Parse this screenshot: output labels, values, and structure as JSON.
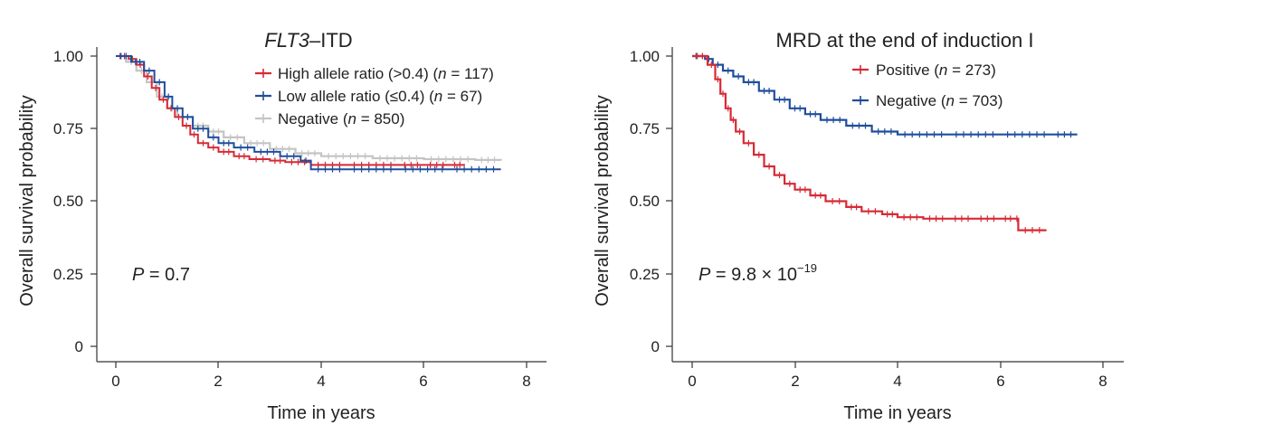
{
  "colors": {
    "red": "#d62a35",
    "blue": "#1f4e9c",
    "gray": "#c4c4c4"
  },
  "chart_data": [
    {
      "type": "line",
      "title_italic": "FLT3",
      "title_rest": "–ITD",
      "xlabel": "Time in years",
      "ylabel": "Overall survival probability",
      "xlim": [
        0,
        8
      ],
      "ylim": [
        0,
        1
      ],
      "xticks": [
        "0",
        "2",
        "4",
        "6",
        "8"
      ],
      "yticks": [
        "0",
        "0.25",
        "0.50",
        "0.75",
        "1.00"
      ],
      "pvalue": {
        "label": "P",
        "text": " = 0.7"
      },
      "series": [
        {
          "name": "High allele ratio (>0.4)",
          "n_text": " = 117)",
          "color": "red",
          "x": [
            0,
            0.25,
            0.4,
            0.55,
            0.7,
            0.85,
            1.0,
            1.15,
            1.3,
            1.45,
            1.6,
            1.8,
            2.0,
            2.3,
            2.6,
            3.0,
            3.3,
            3.8,
            4.5,
            5.5,
            6.0,
            6.5,
            6.8
          ],
          "y": [
            1.0,
            0.99,
            0.97,
            0.93,
            0.89,
            0.85,
            0.82,
            0.79,
            0.76,
            0.73,
            0.7,
            0.685,
            0.67,
            0.655,
            0.645,
            0.64,
            0.635,
            0.625,
            0.625,
            0.625,
            0.625,
            0.625,
            0.625
          ]
        },
        {
          "name": "Low allele ratio (≤0.4)",
          "n_text": " = 67)",
          "color": "blue",
          "x": [
            0,
            0.3,
            0.55,
            0.75,
            0.95,
            1.1,
            1.3,
            1.5,
            1.8,
            2.0,
            2.3,
            2.7,
            3.2,
            3.6,
            3.8,
            4.5,
            5.5,
            6.5,
            7.5
          ],
          "y": [
            1.0,
            0.98,
            0.95,
            0.91,
            0.86,
            0.82,
            0.79,
            0.75,
            0.72,
            0.7,
            0.685,
            0.67,
            0.655,
            0.64,
            0.61,
            0.61,
            0.61,
            0.61,
            0.61
          ]
        },
        {
          "name": "Negative",
          "n_text": " = 850)",
          "color": "gray",
          "x": [
            0,
            0.2,
            0.4,
            0.6,
            0.8,
            1.0,
            1.2,
            1.5,
            1.8,
            2.1,
            2.5,
            3.0,
            3.5,
            4.0,
            5.0,
            6.0,
            7.0,
            7.5
          ],
          "y": [
            1.0,
            0.98,
            0.95,
            0.91,
            0.86,
            0.82,
            0.79,
            0.76,
            0.74,
            0.72,
            0.7,
            0.68,
            0.665,
            0.655,
            0.648,
            0.645,
            0.642,
            0.64
          ]
        }
      ]
    },
    {
      "type": "line",
      "title": "MRD at the end of induction I",
      "xlabel": "Time in years",
      "ylabel": "Overall survival probability",
      "xlim": [
        0,
        8
      ],
      "ylim": [
        0,
        1
      ],
      "xticks": [
        "0",
        "2",
        "4",
        "6",
        "8"
      ],
      "yticks": [
        "0",
        "0.25",
        "0.50",
        "0.75",
        "1.00"
      ],
      "pvalue": {
        "label": "P",
        "text": " = 9.8 × 10",
        "exponent": "−19"
      },
      "series": [
        {
          "name": "Positive",
          "n_text": " = 273)",
          "color": "red",
          "x": [
            0,
            0.3,
            0.45,
            0.55,
            0.65,
            0.75,
            0.85,
            1.0,
            1.2,
            1.4,
            1.6,
            1.8,
            2.0,
            2.3,
            2.6,
            3.0,
            3.3,
            3.7,
            4.0,
            4.5,
            5.0,
            5.5,
            6.0,
            6.3,
            6.35,
            6.9
          ],
          "y": [
            1.0,
            0.97,
            0.92,
            0.87,
            0.82,
            0.78,
            0.74,
            0.7,
            0.66,
            0.62,
            0.59,
            0.56,
            0.54,
            0.52,
            0.5,
            0.48,
            0.465,
            0.455,
            0.445,
            0.44,
            0.44,
            0.44,
            0.44,
            0.44,
            0.4,
            0.4
          ]
        },
        {
          "name": "Negative",
          "n_text": " = 703)",
          "color": "blue",
          "x": [
            0,
            0.15,
            0.25,
            0.4,
            0.6,
            0.8,
            1.0,
            1.3,
            1.6,
            1.9,
            2.2,
            2.5,
            3.0,
            3.5,
            4.0,
            5.0,
            6.0,
            7.0,
            7.5
          ],
          "y": [
            1.0,
            1.0,
            0.99,
            0.97,
            0.95,
            0.93,
            0.91,
            0.88,
            0.85,
            0.82,
            0.8,
            0.78,
            0.76,
            0.74,
            0.73,
            0.73,
            0.73,
            0.73,
            0.73
          ]
        }
      ]
    }
  ]
}
